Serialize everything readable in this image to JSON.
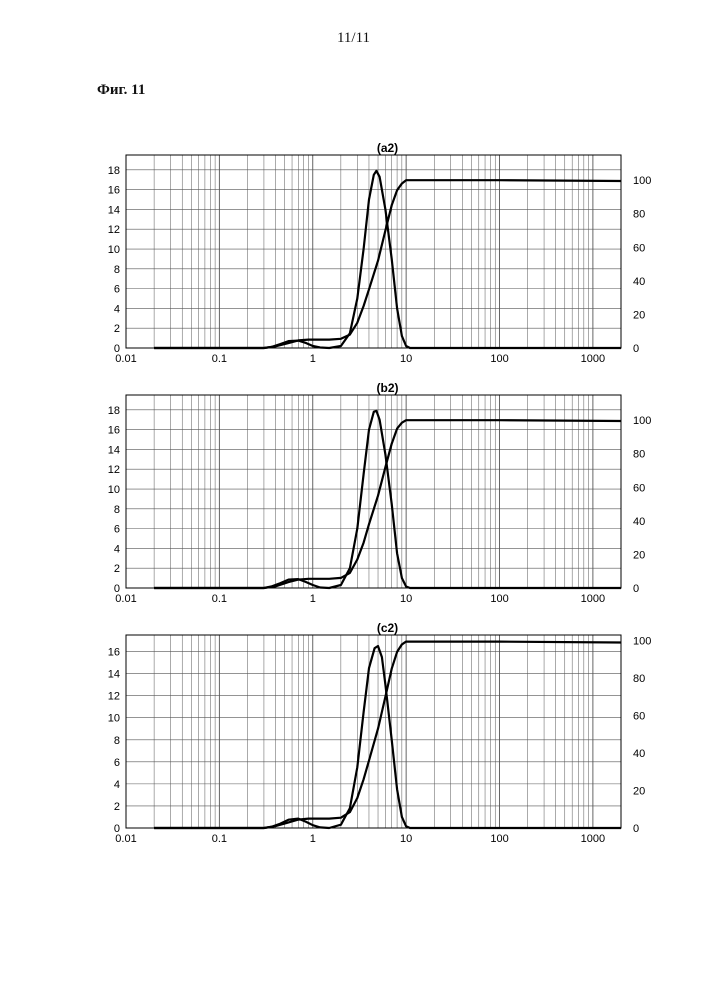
{
  "page": {
    "number": "11/11",
    "figure_label": "Фиг. 11"
  },
  "chart_data": [
    {
      "type": "line",
      "title": "(a2)",
      "xscale": "log",
      "xlim": [
        0.01,
        2000
      ],
      "x_tick_labels": [
        "0.01",
        "0.1",
        "1",
        "10",
        "100",
        "1000"
      ],
      "ylim_left": [
        0,
        19.5
      ],
      "y_left_tick_labels": [
        "0",
        "2",
        "4",
        "6",
        "8",
        "10",
        "12",
        "14",
        "16",
        "18"
      ],
      "ylim_right": [
        0,
        115
      ],
      "y_right_tick_labels": [
        "0",
        "20",
        "40",
        "60",
        "80",
        "100"
      ],
      "grid": true,
      "series": [
        {
          "axis": "left",
          "points": [
            [
              0.02,
              0
            ],
            [
              0.3,
              0
            ],
            [
              0.36,
              0.1
            ],
            [
              0.45,
              0.4
            ],
            [
              0.55,
              0.7
            ],
            [
              0.7,
              0.75
            ],
            [
              0.85,
              0.5
            ],
            [
              1.0,
              0.2
            ],
            [
              1.2,
              0.05
            ],
            [
              1.5,
              0
            ],
            [
              2.0,
              0.2
            ],
            [
              2.5,
              1.5
            ],
            [
              3.0,
              5
            ],
            [
              3.5,
              10
            ],
            [
              4.0,
              15
            ],
            [
              4.5,
              17.5
            ],
            [
              4.8,
              17.9
            ],
            [
              5.2,
              17.3
            ],
            [
              6.0,
              14
            ],
            [
              7.0,
              9
            ],
            [
              8.0,
              4
            ],
            [
              9.0,
              1.2
            ],
            [
              10.0,
              0.2
            ],
            [
              11.0,
              0
            ],
            [
              100,
              0
            ],
            [
              2000,
              0
            ]
          ]
        },
        {
          "axis": "right",
          "points": [
            [
              0.02,
              0
            ],
            [
              0.3,
              0
            ],
            [
              0.4,
              1
            ],
            [
              0.55,
              3
            ],
            [
              0.7,
              4.5
            ],
            [
              0.9,
              5
            ],
            [
              1.5,
              5
            ],
            [
              2.0,
              5.5
            ],
            [
              2.5,
              8
            ],
            [
              3.0,
              15
            ],
            [
              3.5,
              25
            ],
            [
              4.0,
              35
            ],
            [
              5.0,
              52
            ],
            [
              6.0,
              70
            ],
            [
              7.0,
              85
            ],
            [
              8.0,
              94
            ],
            [
              9.0,
              98
            ],
            [
              10.0,
              100
            ],
            [
              100,
              100
            ],
            [
              2000,
              99.5
            ]
          ]
        }
      ]
    },
    {
      "type": "line",
      "title": "(b2)",
      "xscale": "log",
      "xlim": [
        0.01,
        2000
      ],
      "x_tick_labels": [
        "0.01",
        "0.1",
        "1",
        "10",
        "100",
        "1000"
      ],
      "ylim_left": [
        0,
        19.5
      ],
      "y_left_tick_labels": [
        "0",
        "2",
        "4",
        "6",
        "8",
        "10",
        "12",
        "14",
        "16",
        "18"
      ],
      "ylim_right": [
        0,
        115
      ],
      "y_right_tick_labels": [
        "0",
        "20",
        "40",
        "60",
        "80",
        "100"
      ],
      "grid": true,
      "series": [
        {
          "axis": "left",
          "points": [
            [
              0.02,
              0
            ],
            [
              0.3,
              0
            ],
            [
              0.36,
              0.15
            ],
            [
              0.45,
              0.5
            ],
            [
              0.55,
              0.85
            ],
            [
              0.7,
              0.9
            ],
            [
              0.85,
              0.6
            ],
            [
              1.0,
              0.3
            ],
            [
              1.2,
              0.05
            ],
            [
              1.5,
              0
            ],
            [
              2.0,
              0.3
            ],
            [
              2.5,
              2
            ],
            [
              3.0,
              6
            ],
            [
              3.5,
              11.5
            ],
            [
              4.0,
              16
            ],
            [
              4.5,
              17.8
            ],
            [
              4.8,
              17.9
            ],
            [
              5.2,
              17
            ],
            [
              6.0,
              13.5
            ],
            [
              7.0,
              8.5
            ],
            [
              8.0,
              3.5
            ],
            [
              9.0,
              1
            ],
            [
              10.0,
              0.15
            ],
            [
              11.0,
              0
            ],
            [
              100,
              0
            ],
            [
              2000,
              0
            ]
          ]
        },
        {
          "axis": "right",
          "points": [
            [
              0.02,
              0
            ],
            [
              0.3,
              0
            ],
            [
              0.4,
              1
            ],
            [
              0.55,
              3.5
            ],
            [
              0.7,
              5
            ],
            [
              0.9,
              5.5
            ],
            [
              1.5,
              5.5
            ],
            [
              2.0,
              6
            ],
            [
              2.5,
              9
            ],
            [
              3.0,
              17
            ],
            [
              3.5,
              27
            ],
            [
              4.0,
              38
            ],
            [
              5.0,
              55
            ],
            [
              6.0,
              72
            ],
            [
              7.0,
              86
            ],
            [
              8.0,
              95
            ],
            [
              9.0,
              98.5
            ],
            [
              10.0,
              100
            ],
            [
              100,
              100
            ],
            [
              2000,
              99.5
            ]
          ]
        }
      ]
    },
    {
      "type": "line",
      "title": "(c2)",
      "xscale": "log",
      "xlim": [
        0.01,
        2000
      ],
      "x_tick_labels": [
        "0.01",
        "0.1",
        "1",
        "10",
        "100",
        "1000"
      ],
      "ylim_left": [
        0,
        17.5
      ],
      "y_left_tick_labels": [
        "0",
        "2",
        "4",
        "6",
        "8",
        "10",
        "12",
        "14",
        "16"
      ],
      "ylim_right": [
        0,
        103
      ],
      "y_right_tick_labels": [
        "0",
        "20",
        "40",
        "60",
        "80",
        "100"
      ],
      "grid": true,
      "series": [
        {
          "axis": "left",
          "points": [
            [
              0.02,
              0
            ],
            [
              0.3,
              0
            ],
            [
              0.36,
              0.1
            ],
            [
              0.45,
              0.4
            ],
            [
              0.55,
              0.75
            ],
            [
              0.7,
              0.85
            ],
            [
              0.85,
              0.55
            ],
            [
              1.0,
              0.25
            ],
            [
              1.2,
              0.05
            ],
            [
              1.5,
              0
            ],
            [
              2.0,
              0.3
            ],
            [
              2.5,
              1.8
            ],
            [
              3.0,
              5.5
            ],
            [
              3.5,
              10.5
            ],
            [
              4.0,
              14.5
            ],
            [
              4.6,
              16.3
            ],
            [
              5.0,
              16.5
            ],
            [
              5.5,
              15.5
            ],
            [
              6.0,
              13
            ],
            [
              7.0,
              8
            ],
            [
              8.0,
              3.5
            ],
            [
              9.0,
              1
            ],
            [
              10.0,
              0.15
            ],
            [
              11.0,
              0
            ],
            [
              100,
              0
            ],
            [
              2000,
              0
            ]
          ]
        },
        {
          "axis": "right",
          "points": [
            [
              0.02,
              0
            ],
            [
              0.3,
              0
            ],
            [
              0.4,
              1
            ],
            [
              0.55,
              3
            ],
            [
              0.7,
              4.5
            ],
            [
              0.9,
              5
            ],
            [
              1.5,
              5
            ],
            [
              2.0,
              5.5
            ],
            [
              2.5,
              8.5
            ],
            [
              3.0,
              16
            ],
            [
              3.5,
              26
            ],
            [
              4.0,
              36
            ],
            [
              5.0,
              53
            ],
            [
              6.0,
              70
            ],
            [
              7.0,
              85
            ],
            [
              8.0,
              94
            ],
            [
              9.0,
              98
            ],
            [
              10.0,
              99.5
            ],
            [
              100,
              99.5
            ],
            [
              2000,
              99
            ]
          ]
        }
      ]
    }
  ]
}
